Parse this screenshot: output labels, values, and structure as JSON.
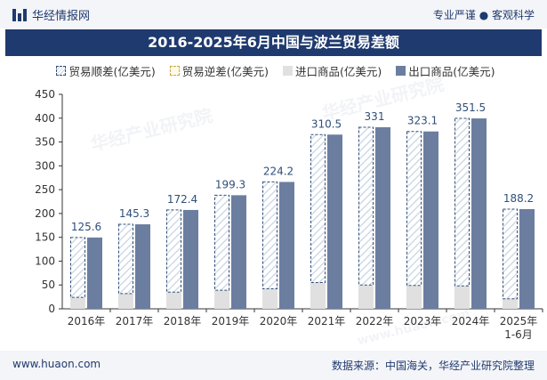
{
  "header": {
    "brand": "华经情报网",
    "tagline": "专业严谨 ● 客观科学"
  },
  "chart_data": {
    "type": "bar",
    "title": "2016-2025年6月中国与波兰贸易差额",
    "categories": [
      "2016年",
      "2017年",
      "2018年",
      "2019年",
      "2020年",
      "2021年",
      "2022年",
      "2023年",
      "2024年",
      "2025年\n1-6月"
    ],
    "series": [
      {
        "name": "贸易顺差(亿美元)",
        "values": [
          125.6,
          145.3,
          172.4,
          199.3,
          224.2,
          310.5,
          331,
          323.1,
          351.5,
          188.2
        ]
      },
      {
        "name": "贸易逆差(亿美元)",
        "values": [
          0,
          0,
          0,
          0,
          0,
          0,
          0,
          0,
          0,
          0
        ]
      },
      {
        "name": "进口商品(亿美元)",
        "values": [
          24,
          32,
          35,
          39,
          42,
          55,
          50,
          49,
          48,
          21
        ]
      },
      {
        "name": "出口商品(亿美元)",
        "values": [
          149.6,
          177.3,
          207.4,
          238.3,
          266.2,
          365.5,
          381,
          372.1,
          399.5,
          209.2
        ]
      }
    ],
    "data_labels": [
      "125.6",
      "145.3",
      "172.4",
      "199.3",
      "224.2",
      "310.5",
      "331",
      "323.1",
      "351.5",
      "188.2"
    ],
    "ylim": [
      0,
      450
    ],
    "yticks": [
      0,
      50,
      100,
      150,
      200,
      250,
      300,
      350,
      400,
      450
    ],
    "xlabel": "",
    "ylabel": "",
    "colors": {
      "import": "#e0e0e0",
      "export": "#6b7ea0",
      "surplus_border": "#2f4f7a",
      "surplus_hatch": "#c9d3e1",
      "deficit_border": "#c9a94a",
      "label": "#2f4f7a",
      "axis": "#333333"
    }
  },
  "legend": {
    "surplus": "贸易顺差(亿美元)",
    "deficit": "贸易逆差(亿美元)",
    "import": "进口商品(亿美元)",
    "export": "出口商品(亿美元)"
  },
  "footer": {
    "website": "www.huaon.com",
    "source": "数据来源：中国海关，华经产业研究院整理"
  },
  "watermark": {
    "text": "华经产业研究院",
    "url": "www.huaon.com"
  }
}
